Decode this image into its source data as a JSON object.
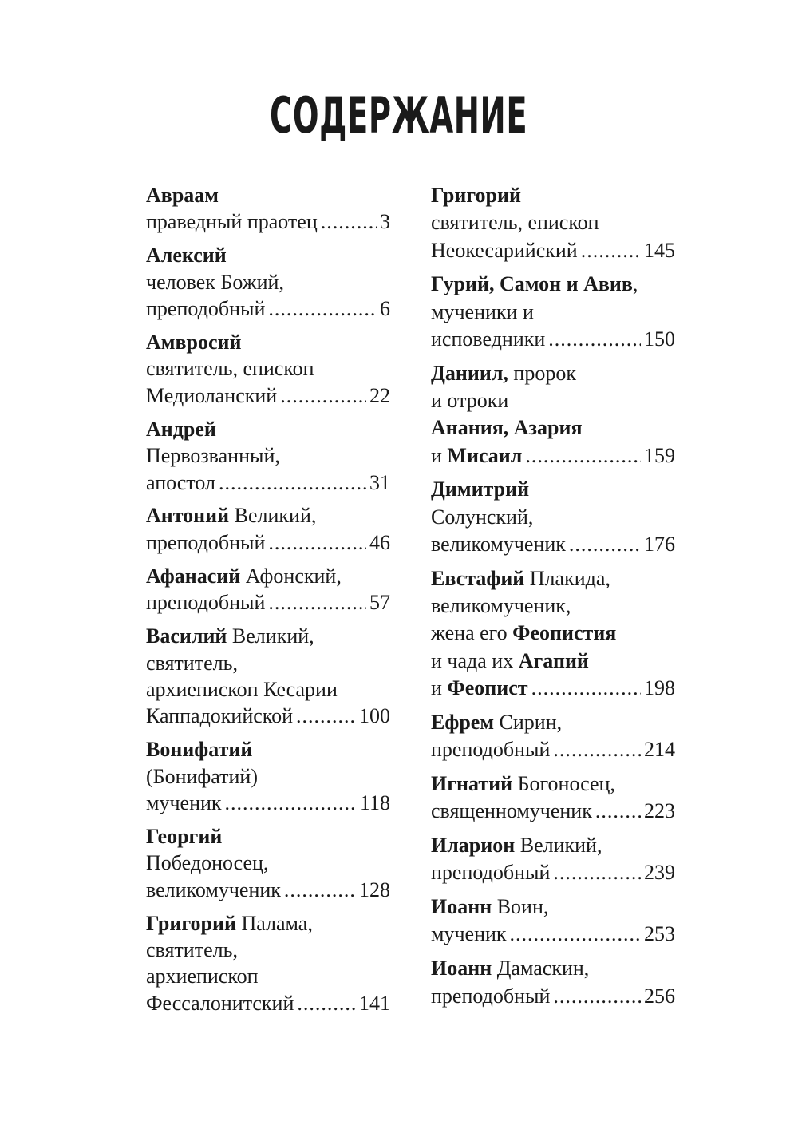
{
  "title": "СОДЕРЖАНИЕ",
  "columns": [
    [
      {
        "lines": [
          [
            {
              "t": "Авраам",
              "b": true
            }
          ],
          [
            {
              "t": "праведный праотец",
              "b": false
            }
          ]
        ],
        "page": "3"
      },
      {
        "lines": [
          [
            {
              "t": "Алексий",
              "b": true
            }
          ],
          [
            {
              "t": "человек Божий,",
              "b": false
            }
          ],
          [
            {
              "t": "преподобный",
              "b": false
            }
          ]
        ],
        "page": "6"
      },
      {
        "lines": [
          [
            {
              "t": "Амвросий",
              "b": true
            }
          ],
          [
            {
              "t": "святитель, епископ",
              "b": false
            }
          ],
          [
            {
              "t": "Медиоланский",
              "b": false
            }
          ]
        ],
        "page": "22"
      },
      {
        "lines": [
          [
            {
              "t": "Андрей",
              "b": true
            }
          ],
          [
            {
              "t": "Первозванный,",
              "b": false
            }
          ],
          [
            {
              "t": "апостол",
              "b": false
            }
          ]
        ],
        "page": "31"
      },
      {
        "lines": [
          [
            {
              "t": "Антоний",
              "b": true
            },
            {
              "t": " Великий,",
              "b": false
            }
          ],
          [
            {
              "t": "преподобный",
              "b": false
            }
          ]
        ],
        "page": "46"
      },
      {
        "lines": [
          [
            {
              "t": "Афанасий",
              "b": true
            },
            {
              "t": " Афонский,",
              "b": false
            }
          ],
          [
            {
              "t": "преподобный",
              "b": false
            }
          ]
        ],
        "page": "57"
      },
      {
        "lines": [
          [
            {
              "t": "Василий",
              "b": true
            },
            {
              "t": " Великий,",
              "b": false
            }
          ],
          [
            {
              "t": "святитель,",
              "b": false
            }
          ],
          [
            {
              "t": "архиепископ Кесарии",
              "b": false
            }
          ],
          [
            {
              "t": "Каппадокийской",
              "b": false
            }
          ]
        ],
        "page": "100"
      },
      {
        "lines": [
          [
            {
              "t": "Вонифатий",
              "b": true
            }
          ],
          [
            {
              "t": "(Бонифатий)",
              "b": false
            }
          ],
          [
            {
              "t": "мученик",
              "b": false
            }
          ]
        ],
        "page": "118"
      },
      {
        "lines": [
          [
            {
              "t": "Георгий",
              "b": true
            }
          ],
          [
            {
              "t": "Победоносец,",
              "b": false
            }
          ],
          [
            {
              "t": "великомученик",
              "b": false
            }
          ]
        ],
        "page": "128"
      },
      {
        "lines": [
          [
            {
              "t": "Григорий",
              "b": true
            },
            {
              "t": " Палама,",
              "b": false
            }
          ],
          [
            {
              "t": "святитель,",
              "b": false
            }
          ],
          [
            {
              "t": "архиепископ",
              "b": false
            }
          ],
          [
            {
              "t": "Фессалонитский",
              "b": false
            }
          ]
        ],
        "page": "141"
      }
    ],
    [
      {
        "lines": [
          [
            {
              "t": "Григорий",
              "b": true
            }
          ],
          [
            {
              "t": "святитель, епископ",
              "b": false
            }
          ],
          [
            {
              "t": "Неокесарийский",
              "b": false
            }
          ]
        ],
        "page": "145"
      },
      {
        "lines": [
          [
            {
              "t": "Гурий, Самон и Авив",
              "b": true
            },
            {
              "t": ",",
              "b": false
            }
          ],
          [
            {
              "t": "мученики и",
              "b": false
            }
          ],
          [
            {
              "t": "исповедники",
              "b": false
            }
          ]
        ],
        "page": "150"
      },
      {
        "lines": [
          [
            {
              "t": "Даниил,",
              "b": true
            },
            {
              "t": " пророк",
              "b": false
            }
          ],
          [
            {
              "t": "и отроки",
              "b": false
            }
          ],
          [
            {
              "t": "Анания, Азария",
              "b": true
            }
          ],
          [
            {
              "t": "и ",
              "b": false
            },
            {
              "t": "Мисаил",
              "b": true
            }
          ]
        ],
        "page": "159"
      },
      {
        "lines": [
          [
            {
              "t": "Димитрий",
              "b": true
            }
          ],
          [
            {
              "t": "Солунский,",
              "b": false
            }
          ],
          [
            {
              "t": "великомученик",
              "b": false
            }
          ]
        ],
        "page": "176"
      },
      {
        "lines": [
          [
            {
              "t": "Евстафий",
              "b": true
            },
            {
              "t": " Плакида,",
              "b": false
            }
          ],
          [
            {
              "t": "великомученик,",
              "b": false
            }
          ],
          [
            {
              "t": "жена его ",
              "b": false
            },
            {
              "t": "Феопистия",
              "b": true
            }
          ],
          [
            {
              "t": "и чада их ",
              "b": false
            },
            {
              "t": "Агапий",
              "b": true
            }
          ],
          [
            {
              "t": "и ",
              "b": false
            },
            {
              "t": "Феопист",
              "b": true
            }
          ]
        ],
        "page": "198"
      },
      {
        "lines": [
          [
            {
              "t": "Ефрем",
              "b": true
            },
            {
              "t": " Сирин,",
              "b": false
            }
          ],
          [
            {
              "t": "преподобный",
              "b": false
            }
          ]
        ],
        "page": "214"
      },
      {
        "lines": [
          [
            {
              "t": "Игнатий",
              "b": true
            },
            {
              "t": " Богоносец,",
              "b": false
            }
          ],
          [
            {
              "t": "священномученик",
              "b": false
            }
          ]
        ],
        "page": "223"
      },
      {
        "lines": [
          [
            {
              "t": "Иларион",
              "b": true
            },
            {
              "t": " Великий,",
              "b": false
            }
          ],
          [
            {
              "t": "преподобный",
              "b": false
            }
          ]
        ],
        "page": "239"
      },
      {
        "lines": [
          [
            {
              "t": "Иоанн",
              "b": true
            },
            {
              "t": " Воин,",
              "b": false
            }
          ],
          [
            {
              "t": "мученик",
              "b": false
            }
          ]
        ],
        "page": "253"
      },
      {
        "lines": [
          [
            {
              "t": "Иоанн",
              "b": true
            },
            {
              "t": " Дамаскин,",
              "b": false
            }
          ],
          [
            {
              "t": "преподобный",
              "b": false
            }
          ]
        ],
        "page": "256"
      }
    ]
  ]
}
